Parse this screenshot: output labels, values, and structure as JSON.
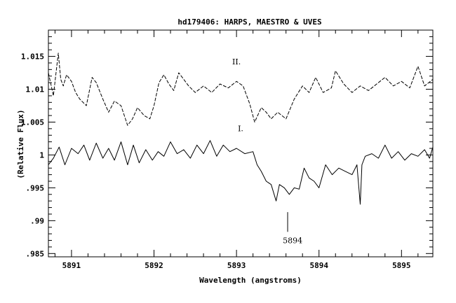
{
  "chart_data": {
    "type": "line",
    "title": "hd179406: HARPS, MAESTRO & UVES",
    "xlabel": "Wavelength (angstroms)",
    "ylabel": "(Relative Flux)",
    "xlim": [
      5890.72,
      5895.38
    ],
    "ylim": [
      0.9845,
      1.019
    ],
    "x_ticks": [
      5891,
      5892,
      5893,
      5894,
      5895
    ],
    "x_tick_labels": [
      "5891",
      "5892",
      "5893",
      "5894",
      "5895"
    ],
    "y_ticks": [
      0.985,
      0.99,
      0.995,
      1.0,
      1.005,
      1.01,
      1.015
    ],
    "y_tick_labels": [
      ".985",
      ".99",
      ".995",
      "1",
      "1.005",
      "1.01",
      "1.015"
    ],
    "grid": false,
    "legend": "none",
    "series": [
      {
        "name": "II.",
        "style": "dashed",
        "x": [
          5890.72,
          5890.78,
          5890.84,
          5890.87,
          5890.9,
          5890.94,
          5891.0,
          5891.05,
          5891.1,
          5891.18,
          5891.25,
          5891.3,
          5891.38,
          5891.45,
          5891.52,
          5891.6,
          5891.68,
          5891.74,
          5891.8,
          5891.88,
          5891.95,
          5892.0,
          5892.06,
          5892.12,
          5892.18,
          5892.24,
          5892.3,
          5892.36,
          5892.42,
          5892.5,
          5892.6,
          5892.7,
          5892.8,
          5892.9,
          5893.0,
          5893.08,
          5893.16,
          5893.22,
          5893.3,
          5893.36,
          5893.42,
          5893.5,
          5893.6,
          5893.7,
          5893.8,
          5893.88,
          5893.96,
          5894.05,
          5894.15,
          5894.2,
          5894.3,
          5894.4,
          5894.5,
          5894.6,
          5894.7,
          5894.8,
          5894.9,
          5895.0,
          5895.1,
          5895.2,
          5895.28,
          5895.38
        ],
        "values": [
          1.0125,
          1.009,
          1.0155,
          1.0115,
          1.0105,
          1.0122,
          1.0112,
          1.0095,
          1.0085,
          1.0075,
          1.0118,
          1.011,
          1.0085,
          1.0065,
          1.0082,
          1.0075,
          1.0045,
          1.0055,
          1.0072,
          1.006,
          1.0055,
          1.0075,
          1.011,
          1.0122,
          1.0108,
          1.0098,
          1.0125,
          1.0115,
          1.0105,
          1.0095,
          1.0105,
          1.0095,
          1.0108,
          1.0102,
          1.0112,
          1.0105,
          1.0078,
          1.005,
          1.0072,
          1.0065,
          1.0055,
          1.0065,
          1.0055,
          1.0085,
          1.0105,
          1.0095,
          1.0118,
          1.0095,
          1.0102,
          1.0128,
          1.0108,
          1.0095,
          1.0105,
          1.0098,
          1.0108,
          1.0118,
          1.0105,
          1.0112,
          1.0102,
          1.0135,
          1.0105,
          1.0115
        ]
      },
      {
        "name": "I.",
        "style": "solid",
        "x": [
          5890.72,
          5890.78,
          5890.85,
          5890.92,
          5891.0,
          5891.08,
          5891.15,
          5891.22,
          5891.3,
          5891.38,
          5891.45,
          5891.52,
          5891.6,
          5891.68,
          5891.75,
          5891.82,
          5891.9,
          5891.98,
          5892.05,
          5892.12,
          5892.2,
          5892.28,
          5892.36,
          5892.44,
          5892.52,
          5892.6,
          5892.68,
          5892.76,
          5892.84,
          5892.92,
          5893.0,
          5893.1,
          5893.2,
          5893.25,
          5893.3,
          5893.36,
          5893.42,
          5893.48,
          5893.52,
          5893.58,
          5893.64,
          5893.7,
          5893.76,
          5893.82,
          5893.88,
          5893.94,
          5894.0,
          5894.08,
          5894.16,
          5894.24,
          5894.32,
          5894.4,
          5894.46,
          5894.5,
          5894.52,
          5894.56,
          5894.64,
          5894.72,
          5894.8,
          5894.88,
          5894.96,
          5895.04,
          5895.12,
          5895.2,
          5895.28,
          5895.34,
          5895.38
        ],
        "values": [
          0.9985,
          0.9995,
          1.0012,
          0.9985,
          1.001,
          1.0002,
          1.0015,
          0.9992,
          1.0018,
          0.9995,
          1.001,
          0.9992,
          1.002,
          0.9985,
          1.0015,
          0.9988,
          1.0008,
          0.9992,
          1.0005,
          0.9998,
          1.002,
          1.0002,
          1.0008,
          0.9995,
          1.0015,
          1.0002,
          1.0022,
          0.9998,
          1.0015,
          1.0005,
          1.001,
          1.0002,
          1.0005,
          0.9985,
          0.9975,
          0.996,
          0.9955,
          0.993,
          0.9955,
          0.995,
          0.994,
          0.995,
          0.9948,
          0.998,
          0.9965,
          0.996,
          0.995,
          0.9985,
          0.997,
          0.998,
          0.9975,
          0.997,
          0.9985,
          0.9925,
          0.9985,
          0.9998,
          1.0002,
          0.9995,
          1.0015,
          0.9995,
          1.0005,
          0.9992,
          1.0002,
          0.9998,
          1.0008,
          0.9995,
          1.0012
        ]
      }
    ],
    "annotations": [
      {
        "text": "II.",
        "x": 5893.0,
        "y": 1.0138
      },
      {
        "text": "I.",
        "x": 5893.05,
        "y": 1.0036
      },
      {
        "text": "5894",
        "x": 5893.68,
        "y": 0.9866,
        "marker_x": 5893.62,
        "marker_top": 0.9913,
        "marker_bottom": 0.9883
      }
    ]
  }
}
